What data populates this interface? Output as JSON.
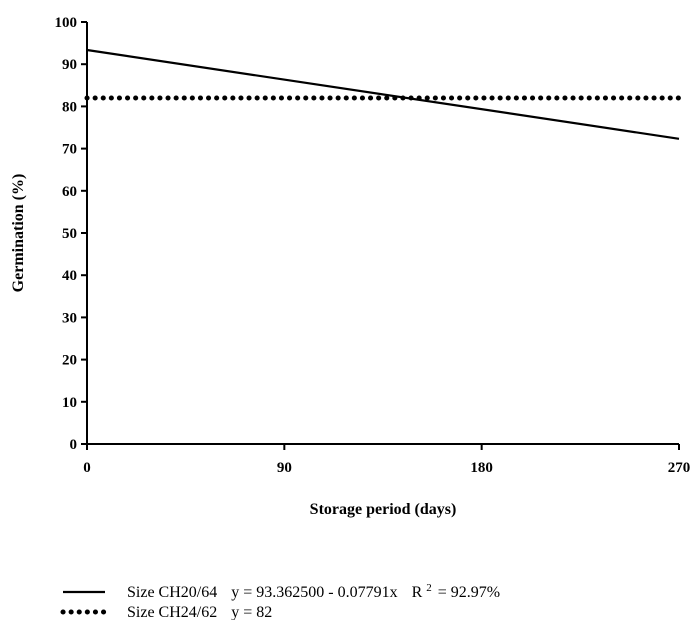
{
  "chart_data": {
    "type": "line",
    "title": "",
    "xlabel": "Storage period (days)",
    "ylabel": "Germination (%)",
    "xlim": [
      0,
      270
    ],
    "ylim": [
      0,
      100
    ],
    "x_ticks": [
      0,
      90,
      180,
      270
    ],
    "y_ticks": [
      0,
      10,
      20,
      30,
      40,
      50,
      60,
      70,
      80,
      90,
      100
    ],
    "grid": false,
    "legend_position": "bottom",
    "series": [
      {
        "name": "Size CH20/64",
        "equation": "y = 93.362500 - 0.07791x",
        "r2_prefix": "R",
        "r2_exponent": "2",
        "r2_value": "= 92.97%",
        "style": "solid",
        "color": "#000000",
        "x": [
          0,
          270
        ],
        "y": [
          93.3625,
          72.3268
        ]
      },
      {
        "name": "Size CH24/62",
        "equation": "y = 82",
        "style": "dotted",
        "color": "#000000",
        "x": [
          0,
          270
        ],
        "y": [
          82,
          82
        ]
      }
    ]
  }
}
